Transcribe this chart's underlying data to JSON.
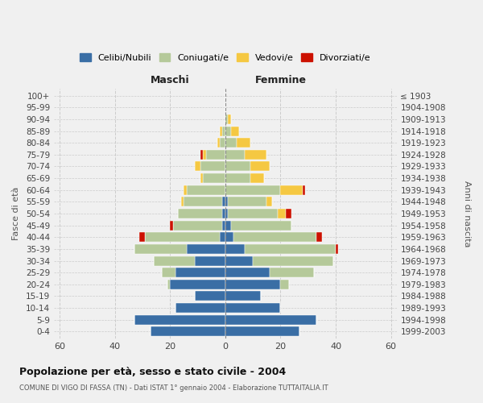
{
  "age_groups": [
    "100+",
    "95-99",
    "90-94",
    "85-89",
    "80-84",
    "75-79",
    "70-74",
    "65-69",
    "60-64",
    "55-59",
    "50-54",
    "45-49",
    "40-44",
    "35-39",
    "30-34",
    "25-29",
    "20-24",
    "15-19",
    "10-14",
    "5-9",
    "0-4"
  ],
  "birth_years": [
    "≤ 1903",
    "1904-1908",
    "1909-1913",
    "1914-1918",
    "1919-1923",
    "1924-1928",
    "1929-1933",
    "1934-1938",
    "1939-1943",
    "1944-1948",
    "1949-1953",
    "1954-1958",
    "1959-1963",
    "1964-1968",
    "1969-1973",
    "1974-1978",
    "1979-1983",
    "1984-1988",
    "1989-1993",
    "1994-1998",
    "1999-2003"
  ],
  "colors": {
    "celibi": "#3a6ea5",
    "coniugati": "#b5c99a",
    "vedovi": "#f5c842",
    "divorziati": "#cc1100"
  },
  "male": {
    "celibi": [
      0,
      0,
      0,
      0,
      0,
      0,
      0,
      0,
      0,
      1,
      1,
      1,
      2,
      14,
      11,
      18,
      20,
      11,
      18,
      33,
      27
    ],
    "coniugati": [
      0,
      0,
      0,
      1,
      2,
      7,
      9,
      8,
      14,
      14,
      16,
      18,
      27,
      19,
      15,
      5,
      1,
      0,
      0,
      0,
      0
    ],
    "vedovi": [
      0,
      0,
      0,
      1,
      1,
      1,
      2,
      1,
      1,
      1,
      0,
      0,
      0,
      0,
      0,
      0,
      0,
      0,
      0,
      0,
      0
    ],
    "divorziati": [
      0,
      0,
      0,
      0,
      0,
      1,
      0,
      0,
      0,
      0,
      0,
      1,
      2,
      0,
      0,
      0,
      0,
      0,
      0,
      0,
      0
    ]
  },
  "female": {
    "nubili": [
      0,
      0,
      0,
      0,
      0,
      0,
      0,
      0,
      0,
      1,
      1,
      2,
      3,
      7,
      10,
      16,
      20,
      13,
      20,
      33,
      27
    ],
    "coniugate": [
      0,
      0,
      1,
      2,
      4,
      7,
      9,
      9,
      20,
      14,
      18,
      22,
      30,
      33,
      29,
      16,
      3,
      0,
      0,
      0,
      0
    ],
    "vedove": [
      0,
      0,
      1,
      3,
      5,
      8,
      7,
      5,
      8,
      2,
      3,
      0,
      0,
      0,
      0,
      0,
      0,
      0,
      0,
      0,
      0
    ],
    "divorziate": [
      0,
      0,
      0,
      0,
      0,
      0,
      0,
      0,
      1,
      0,
      2,
      0,
      2,
      1,
      0,
      0,
      0,
      0,
      0,
      0,
      0
    ]
  },
  "xlim": [
    -62,
    62
  ],
  "xticks": [
    -60,
    -40,
    -20,
    0,
    20,
    40,
    60
  ],
  "xticklabels": [
    "60",
    "40",
    "20",
    "0",
    "20",
    "40",
    "60"
  ],
  "title": "Popolazione per età, sesso e stato civile - 2004",
  "subtitle": "COMUNE DI VIGO DI FASSA (TN) - Dati ISTAT 1° gennaio 2004 - Elaborazione TUTTAITALIA.IT",
  "ylabel_left": "Fasce di età",
  "ylabel_right": "Anni di nascita",
  "label_maschi": "Maschi",
  "label_femmine": "Femmine",
  "legend_labels": [
    "Celibi/Nubili",
    "Coniugati/e",
    "Vedovi/e",
    "Divorziati/e"
  ],
  "background_color": "#f0f0f0",
  "grid_color": "#cccccc"
}
